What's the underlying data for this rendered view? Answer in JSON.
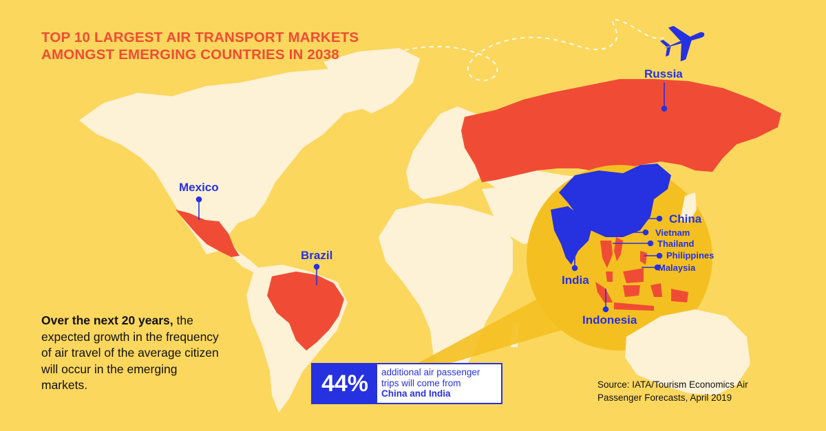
{
  "title": {
    "line1": "TOP 10 LARGEST AIR TRANSPORT MARKETS",
    "line2": "AMONGST EMERGING COUNTRIES IN 2038"
  },
  "colors": {
    "background": "#fbd75e",
    "land": "#fdf1d6",
    "highlighted_country": "#f04c35",
    "emphasized_country": "#2631e0",
    "zoom_circle": "#f4c021",
    "label": "#2631e0",
    "title": "#f04c35"
  },
  "markets": {
    "mexico": "Mexico",
    "brazil": "Brazil",
    "russia": "Russia",
    "china": "China",
    "india": "India",
    "vietnam": "Vietnam",
    "thailand": "Thailand",
    "philippines": "Philippines",
    "malaysia": "Malaysia",
    "indonesia": "Indonesia"
  },
  "note": {
    "lead": "Over the next 20 years,",
    "rest": "the expected growth in the frequency of air travel of the average citizen will occur in the emerging markets."
  },
  "stat": {
    "value": "44%",
    "text": "additional air passenger trips will come from",
    "highlight": "China and India"
  },
  "source": "Source: IATA/Tourism Economics Air Passenger Forecasts, April 2019",
  "icons": {
    "plane": "airplane-icon"
  }
}
